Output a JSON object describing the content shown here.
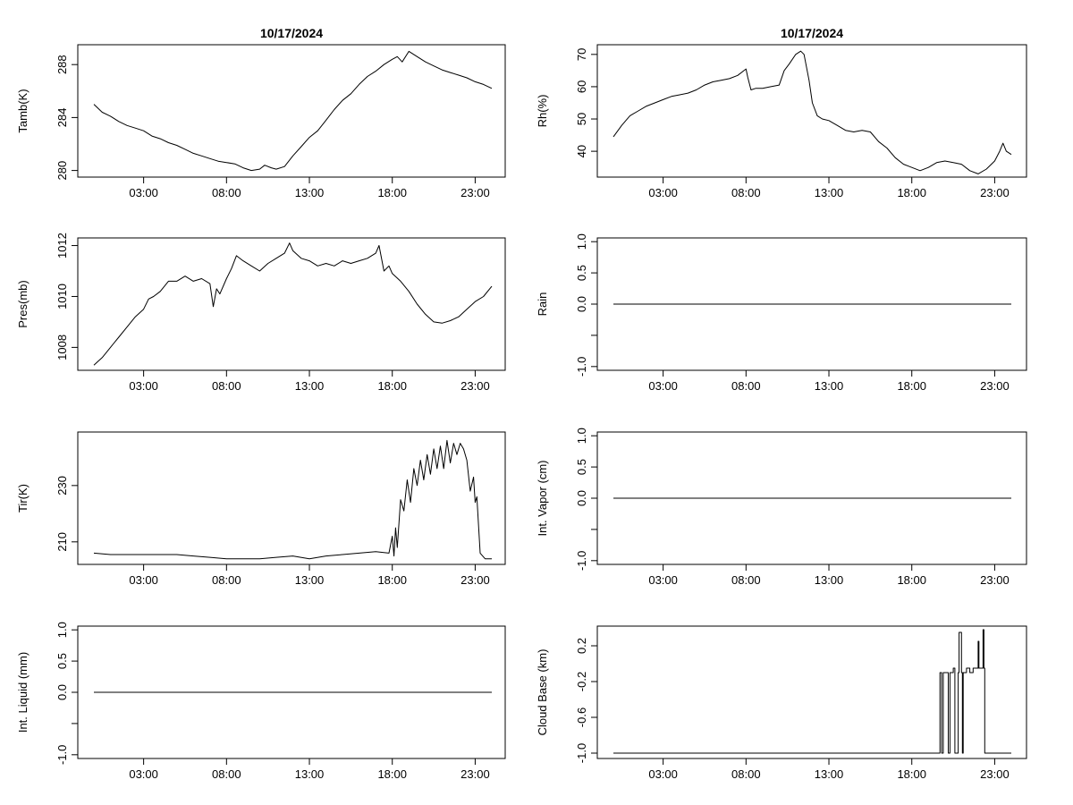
{
  "figure": {
    "title_left": "10/17/2024",
    "title_right": "10/17/2024"
  },
  "chart_data": [
    {
      "type": "line",
      "id": "tamb",
      "ylabel": "Tamb(K)",
      "xlim": [
        0,
        24.5
      ],
      "ylim": [
        279.5,
        289.5
      ],
      "xticks": [
        {
          "v": 3,
          "label": "03:00"
        },
        {
          "v": 8,
          "label": "08:00"
        },
        {
          "v": 13,
          "label": "13:00"
        },
        {
          "v": 18,
          "label": "18:00"
        },
        {
          "v": 23,
          "label": "23:00"
        }
      ],
      "yticks": [
        {
          "v": 280,
          "label": "280"
        },
        {
          "v": 284,
          "label": "284"
        },
        {
          "v": 288,
          "label": "288"
        }
      ],
      "x": [
        0,
        0.5,
        1,
        1.5,
        2,
        2.5,
        3,
        3.5,
        4,
        4.5,
        5,
        5.5,
        6,
        6.5,
        7,
        7.5,
        8,
        8.5,
        9,
        9.5,
        10,
        10.3,
        10.7,
        11,
        11.5,
        12,
        12.5,
        13,
        13.5,
        14,
        14.5,
        15,
        15.5,
        16,
        16.5,
        17,
        17.5,
        18,
        18.3,
        18.6,
        19,
        19.5,
        20,
        20.5,
        21,
        21.5,
        22,
        22.5,
        23,
        23.5,
        24
      ],
      "values": [
        285.0,
        284.4,
        284.1,
        283.7,
        283.4,
        283.2,
        283.0,
        282.6,
        282.4,
        282.1,
        281.9,
        281.6,
        281.3,
        281.1,
        280.9,
        280.7,
        280.6,
        280.5,
        280.2,
        280.0,
        280.1,
        280.4,
        280.2,
        280.1,
        280.3,
        281.1,
        281.8,
        282.5,
        283.0,
        283.8,
        284.6,
        285.3,
        285.8,
        286.5,
        287.1,
        287.5,
        288.0,
        288.4,
        288.6,
        288.2,
        289.0,
        288.6,
        288.2,
        287.9,
        287.6,
        287.4,
        287.2,
        287.0,
        286.7,
        286.5,
        286.2
      ]
    },
    {
      "type": "line",
      "id": "rh",
      "ylabel": "Rh(%)",
      "xlim": [
        0,
        24.5
      ],
      "ylim": [
        32,
        73
      ],
      "xticks": [
        {
          "v": 3,
          "label": "03:00"
        },
        {
          "v": 8,
          "label": "08:00"
        },
        {
          "v": 13,
          "label": "13:00"
        },
        {
          "v": 18,
          "label": "18:00"
        },
        {
          "v": 23,
          "label": "23:00"
        }
      ],
      "yticks": [
        {
          "v": 40,
          "label": "40"
        },
        {
          "v": 50,
          "label": "50"
        },
        {
          "v": 60,
          "label": "60"
        },
        {
          "v": 70,
          "label": "70"
        }
      ],
      "x": [
        0,
        0.5,
        1,
        1.5,
        2,
        2.5,
        3,
        3.5,
        4,
        4.5,
        5,
        5.5,
        6,
        6.5,
        7,
        7.5,
        8,
        8.1,
        8.3,
        8.6,
        9,
        9.5,
        10,
        10.3,
        10.6,
        11,
        11.3,
        11.5,
        11.8,
        12,
        12.3,
        12.6,
        13,
        13.5,
        14,
        14.5,
        15,
        15.5,
        16,
        16.5,
        17,
        17.5,
        18,
        18.5,
        19,
        19.5,
        20,
        20.5,
        21,
        21.5,
        22,
        22.5,
        23,
        23.3,
        23.5,
        23.7,
        24
      ],
      "values": [
        44.5,
        48,
        51,
        52.5,
        54,
        55,
        56,
        57,
        57.5,
        58,
        59,
        60.5,
        61.5,
        62,
        62.5,
        63.5,
        65.5,
        63,
        59,
        59.5,
        59.5,
        60,
        60.5,
        65,
        67,
        70,
        71,
        70,
        62,
        55,
        51,
        50,
        49.5,
        48,
        46.5,
        46,
        46.5,
        46,
        43,
        41,
        38,
        36,
        35,
        34,
        35,
        36.5,
        37,
        36.5,
        36,
        34,
        33,
        34.5,
        37,
        40,
        42.5,
        40,
        39
      ]
    },
    {
      "type": "line",
      "id": "pres",
      "ylabel": "Pres(mb)",
      "xlim": [
        0,
        24.5
      ],
      "ylim": [
        1007.1,
        1012.3
      ],
      "xticks": [
        {
          "v": 3,
          "label": "03:00"
        },
        {
          "v": 8,
          "label": "08:00"
        },
        {
          "v": 13,
          "label": "13:00"
        },
        {
          "v": 18,
          "label": "18:00"
        },
        {
          "v": 23,
          "label": "23:00"
        }
      ],
      "yticks": [
        {
          "v": 1008,
          "label": "1008"
        },
        {
          "v": 1010,
          "label": "1010"
        },
        {
          "v": 1012,
          "label": "1012"
        }
      ],
      "x": [
        0,
        0.5,
        1,
        1.5,
        2,
        2.5,
        3,
        3.3,
        3.6,
        4,
        4.5,
        5,
        5.5,
        6,
        6.5,
        7,
        7.2,
        7.4,
        7.6,
        8,
        8.3,
        8.6,
        9,
        9.5,
        10,
        10.5,
        11,
        11.5,
        11.8,
        12,
        12.5,
        13,
        13.5,
        14,
        14.5,
        15,
        15.5,
        16,
        16.5,
        17,
        17.2,
        17.5,
        17.8,
        18,
        18.5,
        19,
        19.5,
        20,
        20.5,
        21,
        21.5,
        22,
        22.5,
        23,
        23.5,
        24
      ],
      "values": [
        1007.3,
        1007.6,
        1008.0,
        1008.4,
        1008.8,
        1009.2,
        1009.5,
        1009.9,
        1010.0,
        1010.2,
        1010.6,
        1010.6,
        1010.8,
        1010.6,
        1010.7,
        1010.5,
        1009.6,
        1010.3,
        1010.1,
        1010.7,
        1011.1,
        1011.6,
        1011.4,
        1011.2,
        1011.0,
        1011.3,
        1011.5,
        1011.7,
        1012.1,
        1011.8,
        1011.5,
        1011.4,
        1011.2,
        1011.3,
        1011.2,
        1011.4,
        1011.3,
        1011.4,
        1011.5,
        1011.7,
        1012.0,
        1011.0,
        1011.2,
        1010.9,
        1010.6,
        1010.2,
        1009.7,
        1009.3,
        1009.0,
        1008.95,
        1009.05,
        1009.2,
        1009.5,
        1009.8,
        1010.0,
        1010.4
      ]
    },
    {
      "type": "line",
      "id": "rain",
      "ylabel": "Rain",
      "xlim": [
        0,
        24.5
      ],
      "ylim": [
        -1.06,
        1.06
      ],
      "xticks": [
        {
          "v": 3,
          "label": "03:00"
        },
        {
          "v": 8,
          "label": "08:00"
        },
        {
          "v": 13,
          "label": "13:00"
        },
        {
          "v": 18,
          "label": "18:00"
        },
        {
          "v": 23,
          "label": "23:00"
        }
      ],
      "yticks": [
        {
          "v": -1.0,
          "label": "-1.0"
        },
        {
          "v": -0.5,
          "label": ""
        },
        {
          "v": 0.0,
          "label": "0.0"
        },
        {
          "v": 0.5,
          "label": "0.5"
        },
        {
          "v": 1.0,
          "label": "1.0"
        }
      ],
      "x": [
        0,
        24
      ],
      "values": [
        0,
        0
      ]
    },
    {
      "type": "line",
      "id": "tir",
      "ylabel": "Tir(K)",
      "xlim": [
        0,
        24.5
      ],
      "ylim": [
        202,
        249
      ],
      "xticks": [
        {
          "v": 3,
          "label": "03:00"
        },
        {
          "v": 8,
          "label": "08:00"
        },
        {
          "v": 13,
          "label": "13:00"
        },
        {
          "v": 18,
          "label": "18:00"
        },
        {
          "v": 23,
          "label": "23:00"
        }
      ],
      "yticks": [
        {
          "v": 210,
          "label": "210"
        },
        {
          "v": 230,
          "label": "230"
        }
      ],
      "x": [
        0,
        1,
        2,
        3,
        4,
        5,
        6,
        7,
        8,
        9,
        10,
        11,
        12,
        13,
        14,
        15,
        16,
        17,
        17.8,
        18.0,
        18.1,
        18.2,
        18.3,
        18.5,
        18.7,
        18.9,
        19.1,
        19.3,
        19.5,
        19.7,
        19.9,
        20.1,
        20.3,
        20.5,
        20.7,
        20.9,
        21.1,
        21.3,
        21.5,
        21.7,
        21.9,
        22.1,
        22.3,
        22.5,
        22.7,
        22.9,
        23.0,
        23.1,
        23.3,
        23.6,
        24
      ],
      "values": [
        206,
        205.5,
        205.5,
        205.5,
        205.5,
        205.5,
        205,
        204.5,
        204,
        204,
        204,
        204.5,
        205,
        204,
        205,
        205.5,
        206,
        206.5,
        206,
        212,
        205,
        215,
        208,
        225,
        221,
        232,
        224,
        236,
        230,
        239,
        232,
        241,
        234,
        243,
        236,
        244,
        236,
        246,
        238,
        245,
        241,
        245,
        243,
        239,
        228,
        233,
        224,
        226,
        206,
        204,
        204
      ]
    },
    {
      "type": "line",
      "id": "vapor",
      "ylabel": "Int. Vapor (cm)",
      "xlim": [
        0,
        24.5
      ],
      "ylim": [
        -1.06,
        1.06
      ],
      "xticks": [
        {
          "v": 3,
          "label": "03:00"
        },
        {
          "v": 8,
          "label": "08:00"
        },
        {
          "v": 13,
          "label": "13:00"
        },
        {
          "v": 18,
          "label": "18:00"
        },
        {
          "v": 23,
          "label": "23:00"
        }
      ],
      "yticks": [
        {
          "v": -1.0,
          "label": "-1.0"
        },
        {
          "v": -0.5,
          "label": ""
        },
        {
          "v": 0.0,
          "label": "0.0"
        },
        {
          "v": 0.5,
          "label": "0.5"
        },
        {
          "v": 1.0,
          "label": "1.0"
        }
      ],
      "x": [
        0,
        24
      ],
      "values": [
        0,
        0
      ]
    },
    {
      "type": "line",
      "id": "liquid",
      "ylabel": "Int. Liquid (mm)",
      "xlim": [
        0,
        24.5
      ],
      "ylim": [
        -1.06,
        1.06
      ],
      "xticks": [
        {
          "v": 3,
          "label": "03:00"
        },
        {
          "v": 8,
          "label": "08:00"
        },
        {
          "v": 13,
          "label": "13:00"
        },
        {
          "v": 18,
          "label": "18:00"
        },
        {
          "v": 23,
          "label": "23:00"
        }
      ],
      "yticks": [
        {
          "v": -1.0,
          "label": "-1.0"
        },
        {
          "v": -0.5,
          "label": ""
        },
        {
          "v": 0.0,
          "label": "0.0"
        },
        {
          "v": 0.5,
          "label": "0.5"
        },
        {
          "v": 1.0,
          "label": "1.0"
        }
      ],
      "x": [
        0,
        24
      ],
      "values": [
        0,
        0
      ]
    },
    {
      "type": "line",
      "id": "cloud",
      "ylabel": "Cloud Base (km)",
      "xlim": [
        0,
        24.5
      ],
      "ylim": [
        -1.06,
        0.42
      ],
      "xticks": [
        {
          "v": 3,
          "label": "03:00"
        },
        {
          "v": 8,
          "label": "08:00"
        },
        {
          "v": 13,
          "label": "13:00"
        },
        {
          "v": 18,
          "label": "18:00"
        },
        {
          "v": 23,
          "label": "23:00"
        }
      ],
      "yticks": [
        {
          "v": -1.0,
          "label": "-1.0"
        },
        {
          "v": -0.6,
          "label": "-0.6"
        },
        {
          "v": -0.2,
          "label": "-0.2"
        },
        {
          "v": 0.2,
          "label": "0.2"
        }
      ],
      "x": [
        0,
        19.7,
        19.7,
        19.8,
        19.8,
        19.9,
        19.9,
        20.2,
        20.2,
        20.3,
        20.3,
        20.5,
        20.5,
        20.6,
        20.6,
        20.8,
        20.8,
        20.85,
        20.85,
        21.0,
        21.0,
        21.05,
        21.05,
        21.1,
        21.1,
        21.3,
        21.3,
        21.5,
        21.5,
        21.7,
        21.7,
        22.0,
        22.0,
        22.05,
        22.05,
        22.3,
        22.3,
        22.35,
        22.35,
        22.4,
        22.4,
        22.45,
        22.45,
        24
      ],
      "values": [
        -1.0,
        -1.0,
        -0.1,
        -0.1,
        -1.0,
        -1.0,
        -0.1,
        -0.1,
        -1.0,
        -1.0,
        -0.1,
        -0.1,
        -0.05,
        -0.05,
        -1.0,
        -1.0,
        -0.1,
        -0.1,
        0.35,
        0.35,
        -0.1,
        -0.1,
        -1.0,
        -1.0,
        -0.1,
        -0.1,
        -0.05,
        -0.05,
        -0.1,
        -0.1,
        -0.05,
        -0.05,
        0.25,
        0.25,
        -0.05,
        -0.05,
        0.38,
        0.38,
        -0.05,
        -0.05,
        -1.0,
        -1.0,
        -1.0,
        -1.0
      ]
    }
  ]
}
